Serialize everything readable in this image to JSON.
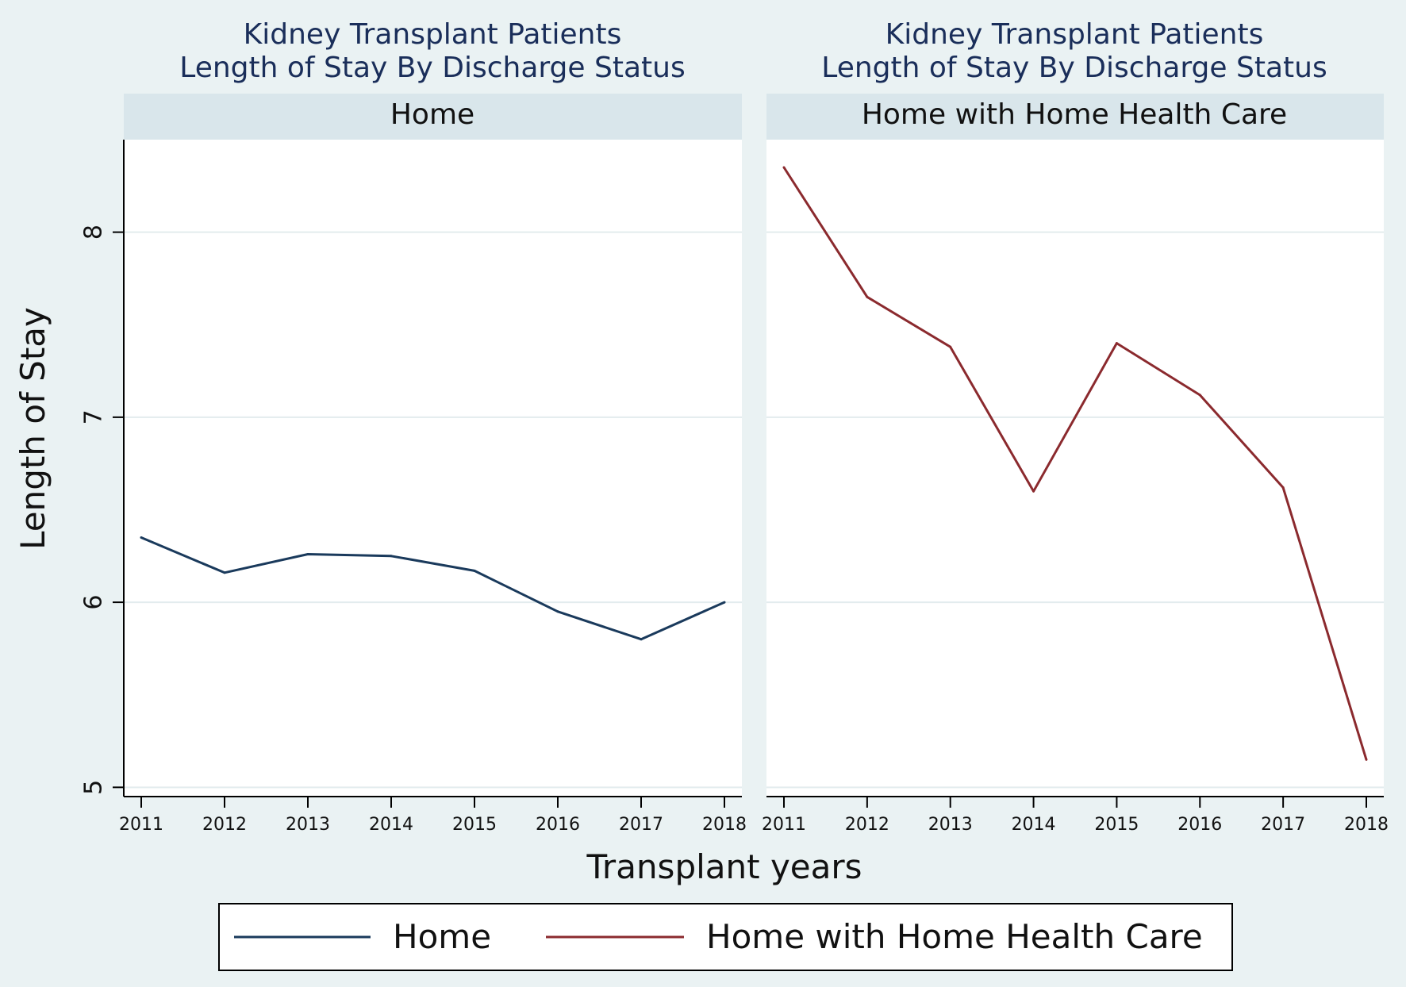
{
  "chart_data": {
    "type": "line",
    "x": [
      2011,
      2012,
      2013,
      2014,
      2015,
      2016,
      2017,
      2018
    ],
    "xlabel": "Transplant years",
    "ylabel": "Length of Stay",
    "ylim": [
      4.95,
      8.5
    ],
    "yticks": [
      5,
      6,
      7,
      8
    ],
    "grid": true,
    "legend_position": "bottom",
    "colors": {
      "home": "#1a3a5c",
      "home_health": "#8b2a2e",
      "panel_header": "#d9e6eb",
      "background": "#eaf2f3"
    },
    "panels": [
      {
        "title_line1": "Kidney Transplant Patients",
        "title_line2": "Length of Stay By Discharge Status",
        "header": "Home",
        "series_index": 0
      },
      {
        "title_line1": "Kidney Transplant Patients",
        "title_line2": "Length of Stay By Discharge Status",
        "header": "Home with Home Health Care",
        "series_index": 1
      }
    ],
    "series": [
      {
        "name": "Home",
        "color": "#1a3a5c",
        "values": [
          6.35,
          6.16,
          6.26,
          6.25,
          6.17,
          5.95,
          5.8,
          6.0
        ]
      },
      {
        "name": "Home with Home Health Care",
        "color": "#8b2a2e",
        "values": [
          8.35,
          7.65,
          7.38,
          6.6,
          7.4,
          7.12,
          6.62,
          5.15
        ]
      }
    ]
  }
}
